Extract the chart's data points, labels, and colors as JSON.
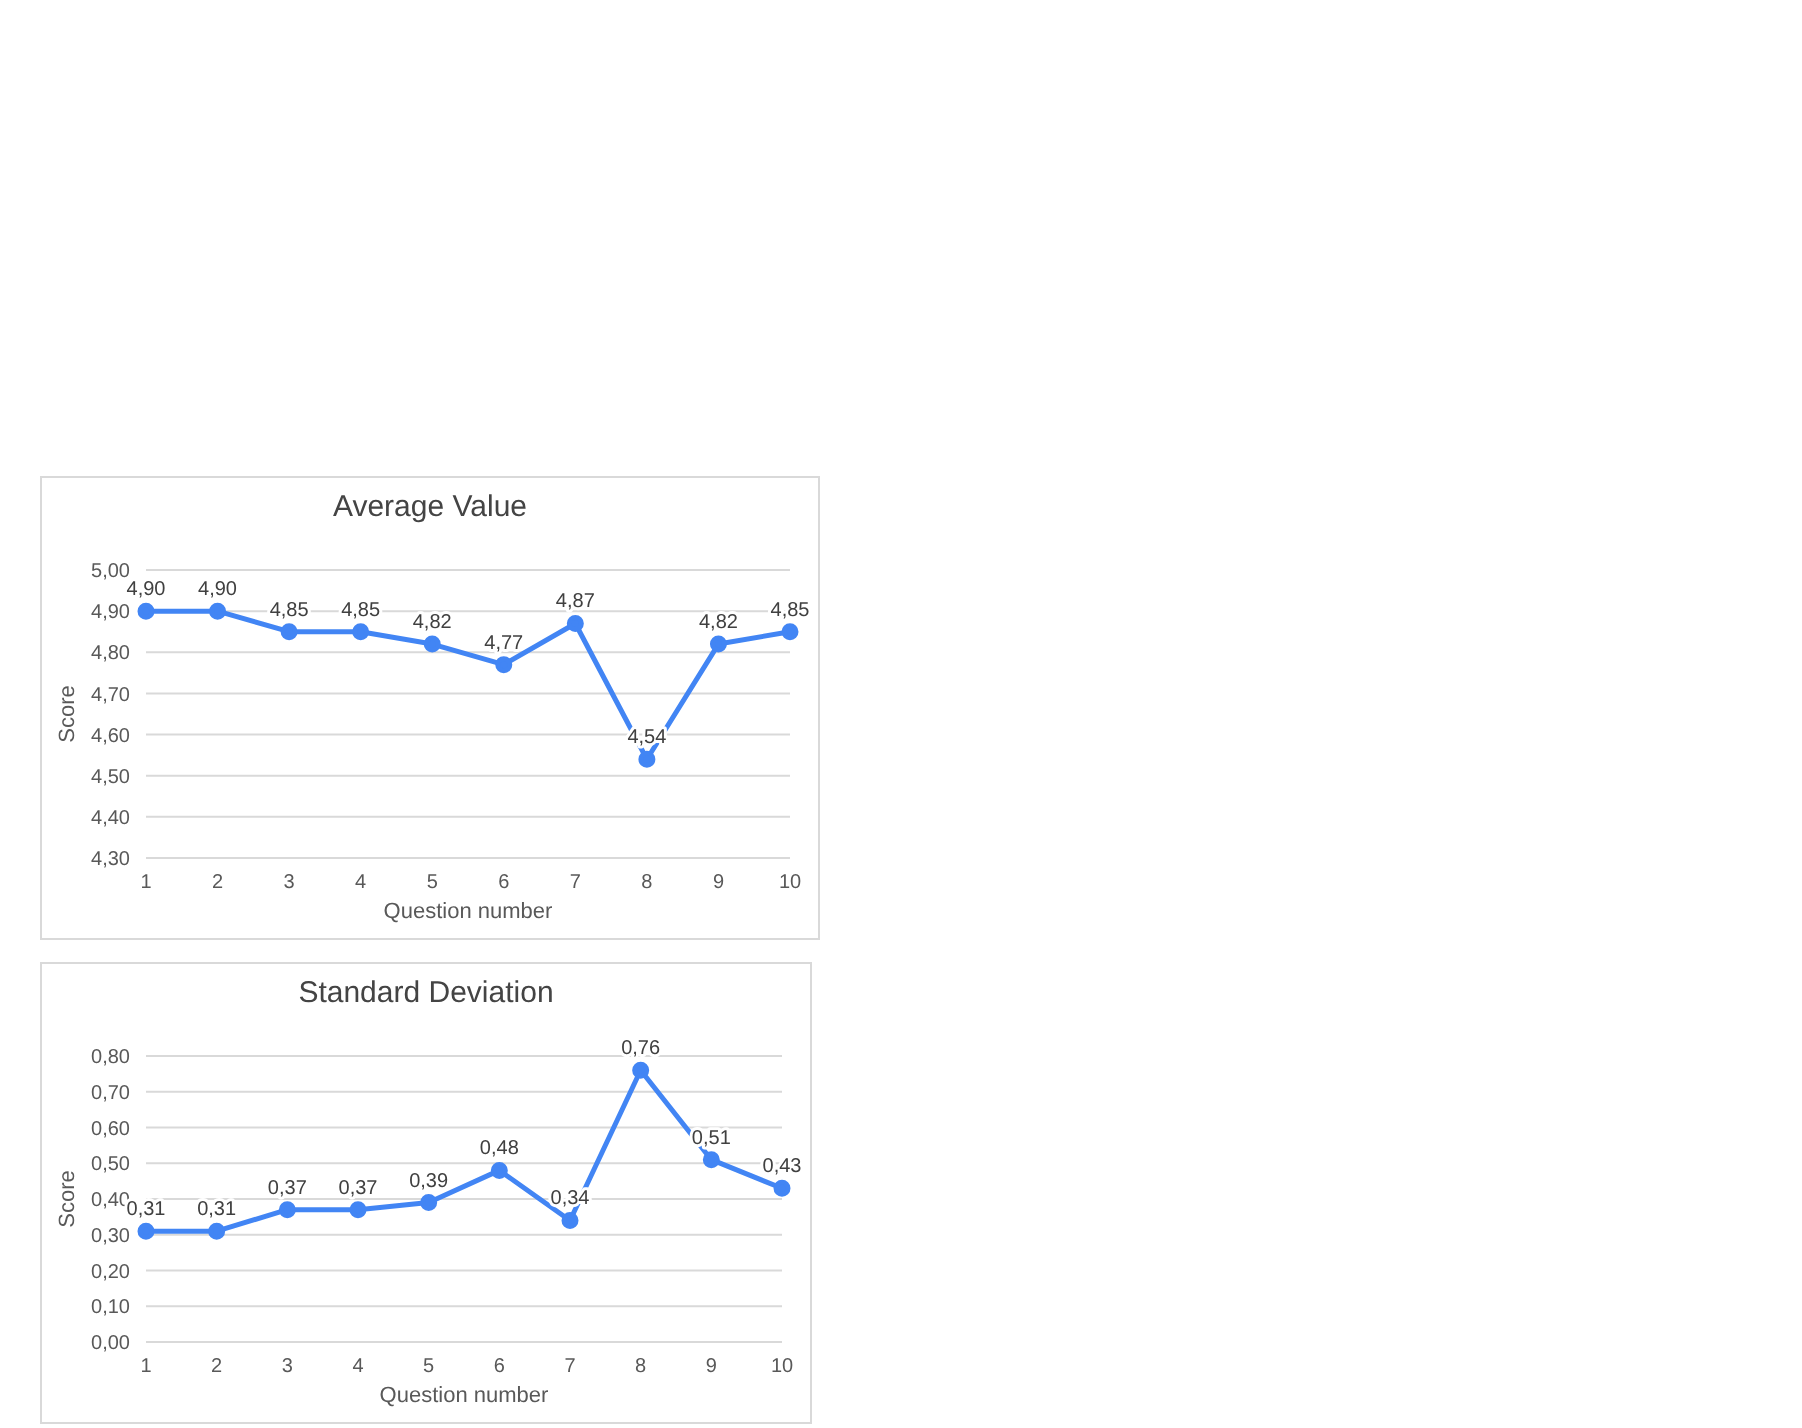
{
  "chart_data": [
    {
      "type": "line",
      "title": "Average Value",
      "xlabel": "Question number",
      "ylabel": "Score",
      "categories": [
        "1",
        "2",
        "3",
        "4",
        "5",
        "6",
        "7",
        "8",
        "9",
        "10"
      ],
      "series": [
        {
          "color": "#4285f4",
          "values": [
            4.9,
            4.9,
            4.85,
            4.85,
            4.82,
            4.77,
            4.87,
            4.54,
            4.82,
            4.85
          ],
          "value_labels": [
            "4,90",
            "4,90",
            "4,85",
            "4,85",
            "4,82",
            "4,77",
            "4,87",
            "4,54",
            "4,82",
            "4,85"
          ]
        }
      ],
      "ylim": [
        4.3,
        5.0
      ],
      "yticks": [
        {
          "value": 4.3,
          "label": "4,30"
        },
        {
          "value": 4.4,
          "label": "4,40"
        },
        {
          "value": 4.5,
          "label": "4,50"
        },
        {
          "value": 4.6,
          "label": "4,60"
        },
        {
          "value": 4.7,
          "label": "4,70"
        },
        {
          "value": 4.8,
          "label": "4,80"
        },
        {
          "value": 4.9,
          "label": "4,90"
        },
        {
          "value": 5.0,
          "label": "5,00"
        }
      ],
      "grid": "y",
      "marker": "circle",
      "line_style": "solid"
    },
    {
      "type": "line",
      "title": "Standard Deviation",
      "xlabel": "Question number",
      "ylabel": "Score",
      "categories": [
        "1",
        "2",
        "3",
        "4",
        "5",
        "6",
        "7",
        "8",
        "9",
        "10"
      ],
      "series": [
        {
          "color": "#4285f4",
          "values": [
            0.31,
            0.31,
            0.37,
            0.37,
            0.39,
            0.48,
            0.34,
            0.76,
            0.51,
            0.43
          ],
          "value_labels": [
            "0,31",
            "0,31",
            "0,37",
            "0,37",
            "0,39",
            "0,48",
            "0,34",
            "0,76",
            "0,51",
            "0,43"
          ]
        }
      ],
      "ylim": [
        0,
        0.8
      ],
      "yticks": [
        {
          "value": 0,
          "label": "0,00"
        },
        {
          "value": 0.1,
          "label": "0,10"
        },
        {
          "value": 0.2,
          "label": "0,20"
        },
        {
          "value": 0.3,
          "label": "0,30"
        },
        {
          "value": 0.4,
          "label": "0,40"
        },
        {
          "value": 0.5,
          "label": "0,50"
        },
        {
          "value": 0.6,
          "label": "0,60"
        },
        {
          "value": 0.7,
          "label": "0,70"
        },
        {
          "value": 0.8,
          "label": "0,80"
        }
      ],
      "grid": "y",
      "marker": "circle",
      "line_style": "solid"
    }
  ]
}
